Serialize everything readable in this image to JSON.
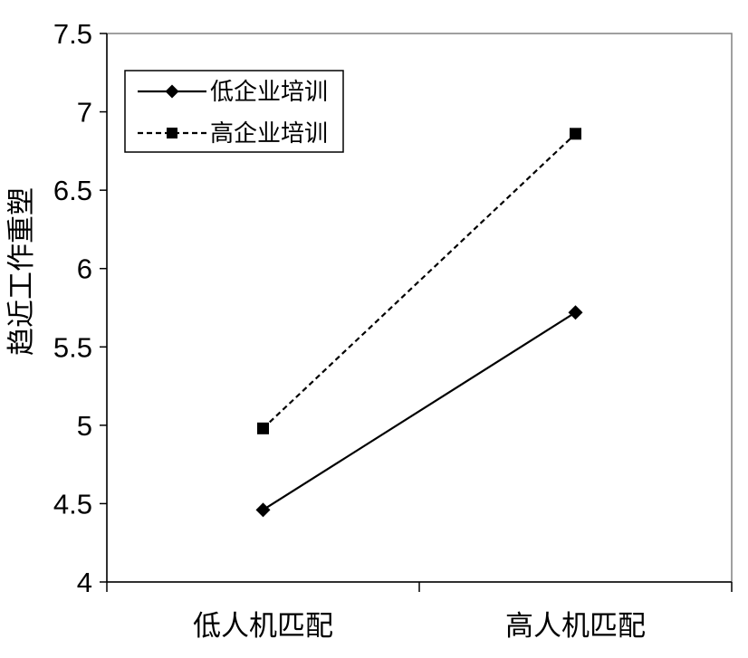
{
  "chart_data": {
    "type": "line",
    "title": "",
    "xlabel": "",
    "ylabel": "趋近工作重塑",
    "categories": [
      "低人机匹配",
      "高人机匹配"
    ],
    "ylim": [
      4,
      7.5
    ],
    "yticks": [
      "4",
      "4.5",
      "5",
      "5.5",
      "6",
      "6.5",
      "7",
      "7.5"
    ],
    "grid": false,
    "legend_position": "top-left",
    "series": [
      {
        "name": "低企业培训",
        "values": [
          4.46,
          5.72
        ],
        "line_style": "solid",
        "marker": "diamond",
        "color": "#000000"
      },
      {
        "name": "高企业培训",
        "values": [
          4.98,
          6.86
        ],
        "line_style": "dashed",
        "marker": "square",
        "color": "#000000"
      }
    ]
  }
}
